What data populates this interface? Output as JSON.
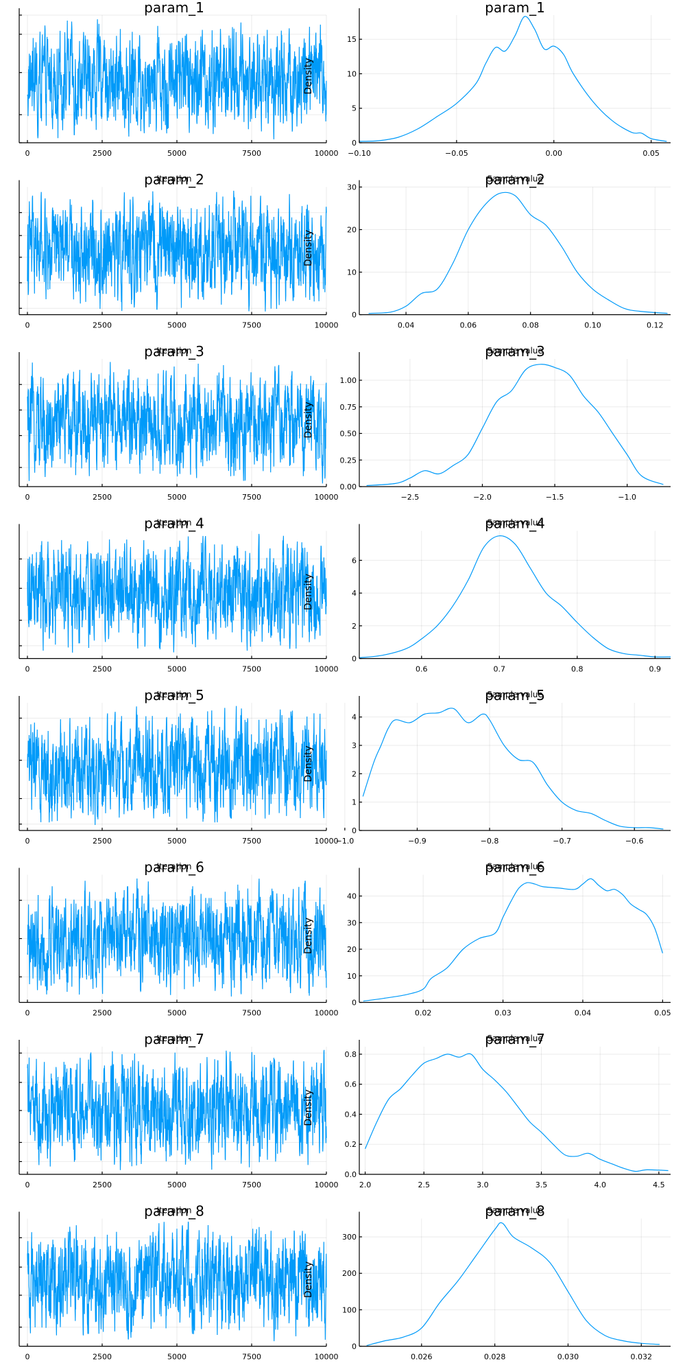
{
  "chart_data": [
    {
      "panel": "trace",
      "type": "line",
      "title": "param_1",
      "xlabel": "",
      "ylabel": "",
      "x_ticks": [
        0,
        2500,
        5000,
        7500,
        10000
      ],
      "xlim": [
        0,
        10000
      ],
      "ylim": [
        0,
        1
      ],
      "y_ticks": [
        0.0,
        0.22,
        0.55,
        0.85,
        1.0
      ],
      "n_samples": 10000
    },
    {
      "panel": "density",
      "type": "line",
      "title": "param_1",
      "xlabel": "",
      "ylabel": "Density",
      "xlim": [
        -0.1,
        0.06
      ],
      "x_ticks": [
        -0.1,
        -0.05,
        0.0,
        0.05
      ],
      "x_tick_labels": [
        "−0.10",
        "−0.05",
        "0.00",
        "0.05"
      ],
      "ylim": [
        0,
        18.5
      ],
      "y_ticks": [
        0,
        5,
        10,
        15
      ],
      "y_tick_labels": [
        "0",
        "5",
        "10",
        "15"
      ],
      "series": [
        {
          "x": [
            -0.1,
            -0.09,
            -0.08,
            -0.07,
            -0.06,
            -0.05,
            -0.04,
            -0.035,
            -0.03,
            -0.025,
            -0.02,
            -0.015,
            -0.01,
            -0.005,
            0.0,
            0.005,
            0.01,
            0.02,
            0.03,
            0.04,
            0.045,
            0.05,
            0.058
          ],
          "y": [
            0.2,
            0.3,
            0.8,
            2.0,
            3.8,
            5.7,
            8.6,
            11.5,
            13.8,
            13.3,
            15.5,
            18.3,
            16.5,
            13.6,
            14.0,
            12.8,
            10.0,
            6.0,
            3.2,
            1.5,
            1.4,
            0.6,
            0.2
          ]
        }
      ]
    },
    {
      "panel": "trace",
      "type": "line",
      "title": "param_2",
      "xlabel": "Iteration",
      "ylabel": "",
      "x_ticks": [
        0,
        2500,
        5000,
        7500,
        10000
      ],
      "xlim": [
        0,
        10000
      ],
      "ylim": [
        0,
        1
      ],
      "y_ticks": [
        0.05,
        0.25,
        0.45,
        0.62,
        0.8
      ],
      "n_samples": 10000
    },
    {
      "panel": "density",
      "type": "line",
      "title": "param_2",
      "xlabel": "Sample value",
      "ylabel": "Density",
      "xlim": [
        0.025,
        0.125
      ],
      "x_ticks": [
        0.04,
        0.06,
        0.08,
        0.1,
        0.12
      ],
      "x_tick_labels": [
        "0.04",
        "0.06",
        "0.08",
        "0.10",
        "0.12"
      ],
      "ylim": [
        0,
        30
      ],
      "y_ticks": [
        0,
        10,
        20,
        30
      ],
      "y_tick_labels": [
        "0",
        "10",
        "20",
        "30"
      ],
      "series": [
        {
          "x": [
            0.028,
            0.035,
            0.04,
            0.045,
            0.05,
            0.055,
            0.06,
            0.065,
            0.07,
            0.075,
            0.08,
            0.085,
            0.09,
            0.095,
            0.1,
            0.105,
            0.11,
            0.115,
            0.124
          ],
          "y": [
            0.3,
            0.6,
            2.0,
            5.0,
            6.0,
            12.0,
            20.0,
            25.5,
            28.5,
            28.0,
            23.5,
            21.0,
            16.0,
            10.0,
            6.0,
            3.5,
            1.5,
            0.8,
            0.3
          ]
        }
      ]
    },
    {
      "panel": "trace",
      "type": "line",
      "title": "param_3",
      "xlabel": "Iteration",
      "ylabel": "",
      "x_ticks": [
        0,
        2500,
        5000,
        7500,
        10000
      ],
      "xlim": [
        0,
        10000
      ],
      "ylim": [
        0,
        1
      ],
      "y_ticks": [
        0.15,
        0.4,
        0.6,
        0.8
      ],
      "n_samples": 10000
    },
    {
      "panel": "density",
      "type": "line",
      "title": "param_3",
      "xlabel": "Sample value",
      "ylabel": "Density",
      "xlim": [
        -2.85,
        -0.7
      ],
      "x_ticks": [
        -2.5,
        -2.0,
        -1.5,
        -1.0
      ],
      "x_tick_labels": [
        "−2.5",
        "−2.0",
        "−1.5",
        "−1.0"
      ],
      "ylim": [
        0,
        1.2
      ],
      "y_ticks": [
        0,
        0.25,
        0.5,
        0.75,
        1.0
      ],
      "y_tick_labels": [
        "0.00",
        "0.25",
        "0.50",
        "0.75",
        "1.00"
      ],
      "series": [
        {
          "x": [
            -2.8,
            -2.6,
            -2.5,
            -2.4,
            -2.3,
            -2.2,
            -2.1,
            -2.0,
            -1.9,
            -1.8,
            -1.7,
            -1.6,
            -1.5,
            -1.4,
            -1.3,
            -1.2,
            -1.1,
            -1.0,
            -0.9,
            -0.75
          ],
          "y": [
            0.01,
            0.03,
            0.08,
            0.15,
            0.12,
            0.2,
            0.3,
            0.55,
            0.8,
            0.9,
            1.1,
            1.15,
            1.12,
            1.05,
            0.85,
            0.7,
            0.5,
            0.3,
            0.1,
            0.02
          ]
        }
      ]
    },
    {
      "panel": "trace",
      "type": "line",
      "title": "param_4",
      "xlabel": "Iteration",
      "ylabel": "",
      "x_ticks": [
        0,
        2500,
        5000,
        7500,
        10000
      ],
      "xlim": [
        0,
        10000
      ],
      "ylim": [
        0,
        1
      ],
      "y_ticks": [
        0.1,
        0.3,
        0.55,
        0.78
      ],
      "n_samples": 10000
    },
    {
      "panel": "density",
      "type": "line",
      "title": "param_4",
      "xlabel": "Sample value",
      "ylabel": "Density",
      "xlim": [
        0.52,
        0.92
      ],
      "x_ticks": [
        0.6,
        0.7,
        0.8,
        0.9
      ],
      "x_tick_labels": [
        "0.6",
        "0.7",
        "0.8",
        "0.9"
      ],
      "ylim": [
        0,
        7.8
      ],
      "y_ticks": [
        0,
        2,
        4,
        6
      ],
      "y_tick_labels": [
        "0",
        "2",
        "4",
        "6"
      ],
      "series": [
        {
          "x": [
            0.52,
            0.55,
            0.58,
            0.6,
            0.62,
            0.64,
            0.66,
            0.68,
            0.7,
            0.72,
            0.74,
            0.76,
            0.78,
            0.8,
            0.82,
            0.84,
            0.86,
            0.88,
            0.9,
            0.92
          ],
          "y": [
            0.05,
            0.2,
            0.6,
            1.2,
            2.0,
            3.2,
            4.8,
            6.8,
            7.5,
            7.0,
            5.5,
            4.0,
            3.2,
            2.2,
            1.3,
            0.6,
            0.3,
            0.2,
            0.1,
            0.1
          ]
        }
      ]
    },
    {
      "panel": "trace",
      "type": "line",
      "title": "param_5",
      "xlabel": "Iteration",
      "ylabel": "",
      "x_ticks": [
        0,
        2500,
        5000,
        7500,
        10000
      ],
      "xlim": [
        0,
        10000
      ],
      "ylim": [
        0,
        1
      ],
      "y_ticks": [
        0.05,
        0.25,
        0.55,
        0.88
      ],
      "n_samples": 10000
    },
    {
      "panel": "density",
      "type": "line",
      "title": "param_5",
      "xlabel": "Sample value",
      "ylabel": "Density",
      "xlim": [
        -0.98,
        -0.55
      ],
      "x_ticks": [
        -1.0,
        -0.9,
        -0.8,
        -0.7,
        -0.6
      ],
      "x_tick_labels": [
        "−1.0",
        "−0.9",
        "−0.8",
        "−0.7",
        "−0.6"
      ],
      "ylim": [
        0,
        4.5
      ],
      "y_ticks": [
        0,
        1,
        2,
        3,
        4
      ],
      "y_tick_labels": [
        "0",
        "1",
        "2",
        "3",
        "4"
      ],
      "series": [
        {
          "x": [
            -0.975,
            -0.96,
            -0.95,
            -0.94,
            -0.93,
            -0.91,
            -0.89,
            -0.87,
            -0.85,
            -0.83,
            -0.81,
            -0.8,
            -0.78,
            -0.76,
            -0.74,
            -0.72,
            -0.7,
            -0.68,
            -0.66,
            -0.64,
            -0.62,
            -0.6,
            -0.58,
            -0.56
          ],
          "y": [
            1.2,
            2.4,
            3.0,
            3.6,
            3.9,
            3.8,
            4.1,
            4.15,
            4.3,
            3.8,
            4.1,
            3.9,
            3.0,
            2.5,
            2.4,
            1.6,
            1.0,
            0.7,
            0.6,
            0.35,
            0.15,
            0.1,
            0.1,
            0.05
          ]
        }
      ]
    },
    {
      "panel": "trace",
      "type": "line",
      "title": "param_6",
      "xlabel": "Iteration",
      "ylabel": "",
      "x_ticks": [
        0,
        2500,
        5000,
        7500,
        10000
      ],
      "xlim": [
        0,
        10000
      ],
      "ylim": [
        0,
        1
      ],
      "y_ticks": [
        0.2,
        0.5,
        0.8
      ],
      "n_samples": 10000
    },
    {
      "panel": "density",
      "type": "line",
      "title": "param_6",
      "xlabel": "Sample value",
      "ylabel": "Density",
      "xlim": [
        0.012,
        0.051
      ],
      "x_ticks": [
        0.02,
        0.03,
        0.04,
        0.05
      ],
      "x_tick_labels": [
        "0.02",
        "0.03",
        "0.04",
        "0.05"
      ],
      "ylim": [
        0,
        48
      ],
      "y_ticks": [
        0,
        10,
        20,
        30,
        40
      ],
      "y_tick_labels": [
        "0",
        "10",
        "20",
        "30",
        "40"
      ],
      "series": [
        {
          "x": [
            0.0125,
            0.015,
            0.018,
            0.02,
            0.021,
            0.023,
            0.025,
            0.027,
            0.029,
            0.03,
            0.031,
            0.032,
            0.033,
            0.034,
            0.035,
            0.037,
            0.039,
            0.04,
            0.041,
            0.042,
            0.043,
            0.044,
            0.045,
            0.046,
            0.047,
            0.048,
            0.049,
            0.05
          ],
          "y": [
            0.5,
            1.5,
            3.0,
            5.0,
            9.0,
            13.0,
            20.0,
            24.0,
            26.0,
            32.0,
            38.0,
            43.0,
            45.0,
            44.5,
            43.5,
            43.0,
            42.5,
            44.5,
            46.5,
            44.0,
            42.0,
            42.5,
            40.5,
            37.0,
            35.0,
            33.0,
            28.0,
            18.5
          ]
        }
      ]
    },
    {
      "panel": "trace",
      "type": "line",
      "title": "param_7",
      "xlabel": "Iteration",
      "ylabel": "",
      "x_ticks": [
        0,
        2500,
        5000,
        7500,
        10000
      ],
      "xlim": [
        0,
        10000
      ],
      "ylim": [
        0,
        1
      ],
      "y_ticks": [
        0.1,
        0.25,
        0.5,
        0.72,
        0.95
      ],
      "n_samples": 10000
    },
    {
      "panel": "density",
      "type": "line",
      "title": "param_7",
      "xlabel": "Sample value",
      "ylabel": "Density",
      "xlim": [
        1.95,
        4.6
      ],
      "x_ticks": [
        2.0,
        2.5,
        3.0,
        3.5,
        4.0,
        4.5
      ],
      "x_tick_labels": [
        "2.0",
        "2.5",
        "3.0",
        "3.5",
        "4.0",
        "4.5"
      ],
      "ylim": [
        0,
        0.85
      ],
      "y_ticks": [
        0,
        0.2,
        0.4,
        0.6,
        0.8
      ],
      "y_tick_labels": [
        "0.0",
        "0.2",
        "0.4",
        "0.6",
        "0.8"
      ],
      "series": [
        {
          "x": [
            2.0,
            2.1,
            2.2,
            2.3,
            2.4,
            2.5,
            2.6,
            2.7,
            2.8,
            2.9,
            3.0,
            3.1,
            3.2,
            3.3,
            3.4,
            3.5,
            3.6,
            3.7,
            3.8,
            3.9,
            4.0,
            4.1,
            4.2,
            4.3,
            4.4,
            4.58
          ],
          "y": [
            0.17,
            0.35,
            0.5,
            0.57,
            0.66,
            0.74,
            0.77,
            0.8,
            0.78,
            0.8,
            0.7,
            0.63,
            0.55,
            0.45,
            0.35,
            0.28,
            0.2,
            0.13,
            0.12,
            0.14,
            0.1,
            0.07,
            0.04,
            0.02,
            0.03,
            0.025
          ]
        }
      ]
    },
    {
      "panel": "trace",
      "type": "line",
      "title": "param_8",
      "xlabel": "Iteration",
      "ylabel": "",
      "x_ticks": [
        0,
        2500,
        5000,
        7500,
        10000
      ],
      "xlim": [
        0,
        10000
      ],
      "ylim": [
        0,
        1
      ],
      "y_ticks": [
        0.15,
        0.4,
        0.62,
        0.85
      ],
      "n_samples": 10000
    },
    {
      "panel": "density",
      "type": "line",
      "title": "param_8",
      "xlabel": "Sample value",
      "ylabel": "Density",
      "xlim": [
        0.0243,
        0.0328
      ],
      "x_ticks": [
        0.026,
        0.028,
        0.03,
        0.032
      ],
      "x_tick_labels": [
        "0.026",
        "0.028",
        "0.030",
        "0.032"
      ],
      "ylim": [
        0,
        350
      ],
      "y_ticks": [
        0,
        100,
        200,
        300
      ],
      "y_tick_labels": [
        "0",
        "100",
        "200",
        "300"
      ],
      "series": [
        {
          "x": [
            0.0245,
            0.025,
            0.0255,
            0.026,
            0.0265,
            0.027,
            0.0275,
            0.028,
            0.0282,
            0.0285,
            0.029,
            0.0295,
            0.03,
            0.0305,
            0.031,
            0.0315,
            0.032,
            0.0325
          ],
          "y": [
            2,
            15,
            25,
            50,
            120,
            180,
            250,
            320,
            338,
            300,
            270,
            230,
            150,
            70,
            30,
            15,
            8,
            5
          ]
        }
      ]
    }
  ]
}
